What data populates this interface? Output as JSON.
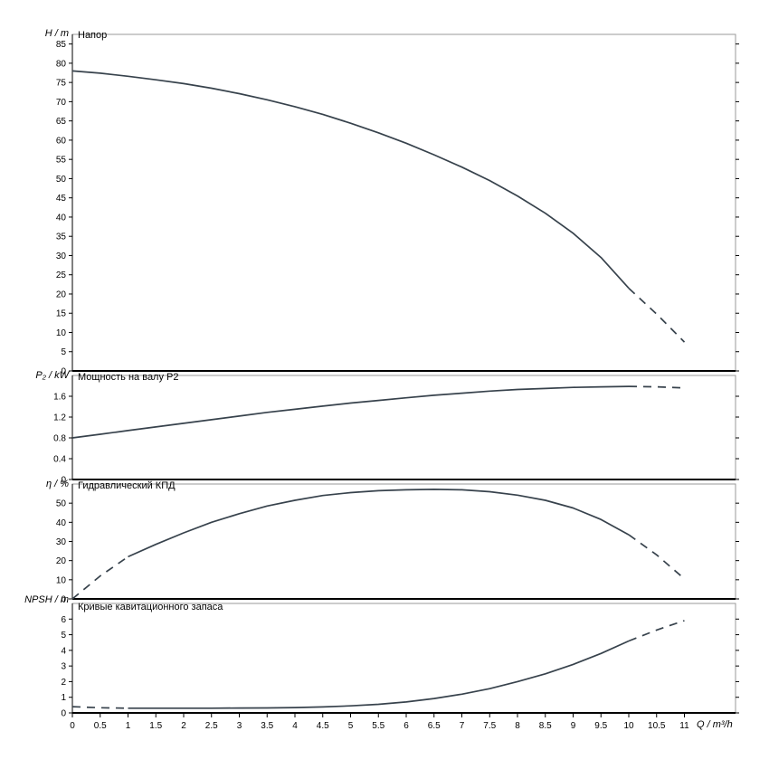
{
  "colors": {
    "curve": "#37424c",
    "frame": "#9a9a9a",
    "axis": "#000000"
  },
  "chart_data": {
    "type": "line",
    "x_axis": {
      "label": "Q / m³/h",
      "ticks": [
        0,
        0.5,
        1,
        1.5,
        2,
        2.5,
        3,
        3.5,
        4,
        4.5,
        5,
        5.5,
        6,
        6.5,
        7,
        7.5,
        8,
        8.5,
        9,
        9.5,
        10,
        10.5,
        11
      ],
      "range": [
        0,
        11.9
      ]
    },
    "subplots": [
      {
        "id": "head",
        "title": "Напор",
        "ylabel": "H / m",
        "ylim": [
          0,
          87.5
        ],
        "yticks": [
          0,
          5,
          10,
          15,
          20,
          25,
          30,
          35,
          40,
          45,
          50,
          55,
          60,
          65,
          70,
          75,
          80,
          85
        ],
        "series": [
          {
            "name": "head-curve-solid",
            "style": "solid",
            "points": [
              [
                0,
                78
              ],
              [
                0.5,
                77.4
              ],
              [
                1,
                76.6
              ],
              [
                1.5,
                75.7
              ],
              [
                2,
                74.7
              ],
              [
                2.5,
                73.5
              ],
              [
                3,
                72.1
              ],
              [
                3.5,
                70.5
              ],
              [
                4,
                68.7
              ],
              [
                4.5,
                66.7
              ],
              [
                5,
                64.4
              ],
              [
                5.5,
                61.9
              ],
              [
                6,
                59.2
              ],
              [
                6.5,
                56.2
              ],
              [
                7,
                53
              ],
              [
                7.5,
                49.5
              ],
              [
                8,
                45.5
              ],
              [
                8.5,
                41
              ],
              [
                9,
                35.8
              ],
              [
                9.5,
                29.5
              ],
              [
                10,
                21.5
              ]
            ]
          },
          {
            "name": "head-curve-dashed-right",
            "style": "dashed",
            "points": [
              [
                10,
                21.5
              ],
              [
                10.5,
                14.8
              ],
              [
                11,
                7.5
              ]
            ]
          }
        ]
      },
      {
        "id": "power",
        "title": "Мощность на валу P2",
        "ylabel": "P₂ / kW",
        "ylim": [
          0,
          2.0
        ],
        "yticks": [
          0,
          0.4,
          0.8,
          1.2,
          1.6
        ],
        "series": [
          {
            "name": "power-curve-solid",
            "style": "solid",
            "points": [
              [
                0,
                0.8
              ],
              [
                0.5,
                0.87
              ],
              [
                1,
                0.94
              ],
              [
                1.5,
                1.01
              ],
              [
                2,
                1.08
              ],
              [
                2.5,
                1.15
              ],
              [
                3,
                1.22
              ],
              [
                3.5,
                1.29
              ],
              [
                4,
                1.35
              ],
              [
                4.5,
                1.41
              ],
              [
                5,
                1.47
              ],
              [
                5.5,
                1.52
              ],
              [
                6,
                1.57
              ],
              [
                6.5,
                1.62
              ],
              [
                7,
                1.66
              ],
              [
                7.5,
                1.7
              ],
              [
                8,
                1.73
              ],
              [
                8.5,
                1.75
              ],
              [
                9,
                1.77
              ],
              [
                9.5,
                1.78
              ],
              [
                10,
                1.79
              ]
            ]
          },
          {
            "name": "power-curve-dashed-right",
            "style": "dashed",
            "points": [
              [
                10,
                1.79
              ],
              [
                10.5,
                1.78
              ],
              [
                11,
                1.76
              ]
            ]
          }
        ]
      },
      {
        "id": "efficiency",
        "title": "Гидравлический КПД",
        "ylabel": "η / %",
        "ylim": [
          0,
          60
        ],
        "yticks": [
          0,
          10,
          20,
          30,
          40,
          50
        ],
        "series": [
          {
            "name": "efficiency-curve-dashed-left",
            "style": "dashed",
            "points": [
              [
                0,
                0
              ],
              [
                0.5,
                12
              ],
              [
                1,
                22
              ]
            ]
          },
          {
            "name": "efficiency-curve-solid",
            "style": "solid",
            "points": [
              [
                1,
                22
              ],
              [
                1.5,
                28.5
              ],
              [
                2,
                34.5
              ],
              [
                2.5,
                40
              ],
              [
                3,
                44.5
              ],
              [
                3.5,
                48.5
              ],
              [
                4,
                51.5
              ],
              [
                4.5,
                54
              ],
              [
                5,
                55.5
              ],
              [
                5.5,
                56.5
              ],
              [
                6,
                57
              ],
              [
                6.5,
                57.2
              ],
              [
                7,
                57
              ],
              [
                7.5,
                56
              ],
              [
                8,
                54.2
              ],
              [
                8.5,
                51.5
              ],
              [
                9,
                47.5
              ],
              [
                9.5,
                41.5
              ],
              [
                10,
                33.5
              ]
            ]
          },
          {
            "name": "efficiency-curve-dashed-right",
            "style": "dashed",
            "points": [
              [
                10,
                33.5
              ],
              [
                10.5,
                23
              ],
              [
                11,
                10.5
              ]
            ]
          }
        ]
      },
      {
        "id": "npsh",
        "title": "Кривые кавитационного запаса",
        "ylabel": "NPSH / m",
        "ylim": [
          0,
          7
        ],
        "yticks": [
          0,
          1,
          2,
          3,
          4,
          5,
          6
        ],
        "series": [
          {
            "name": "npsh-curve-dashed-left",
            "style": "dashed",
            "points": [
              [
                0,
                0.4
              ],
              [
                0.5,
                0.33
              ],
              [
                1,
                0.3
              ]
            ]
          },
          {
            "name": "npsh-curve-solid",
            "style": "solid",
            "points": [
              [
                1,
                0.3
              ],
              [
                1.5,
                0.3
              ],
              [
                2,
                0.3
              ],
              [
                2.5,
                0.3
              ],
              [
                3,
                0.31
              ],
              [
                3.5,
                0.32
              ],
              [
                4,
                0.34
              ],
              [
                4.5,
                0.38
              ],
              [
                5,
                0.45
              ],
              [
                5.5,
                0.55
              ],
              [
                6,
                0.7
              ],
              [
                6.5,
                0.92
              ],
              [
                7,
                1.2
              ],
              [
                7.5,
                1.55
              ],
              [
                8,
                2.0
              ],
              [
                8.5,
                2.5
              ],
              [
                9,
                3.1
              ],
              [
                9.5,
                3.8
              ],
              [
                10,
                4.6
              ]
            ]
          },
          {
            "name": "npsh-curve-dashed-right",
            "style": "dashed",
            "points": [
              [
                10,
                4.6
              ],
              [
                10.5,
                5.3
              ],
              [
                11,
                5.9
              ]
            ]
          }
        ]
      }
    ]
  }
}
